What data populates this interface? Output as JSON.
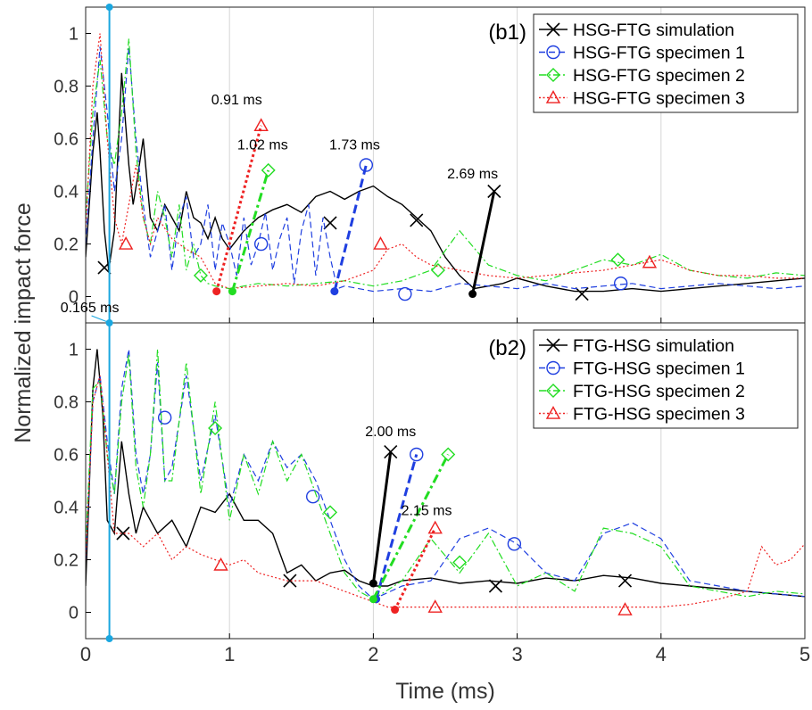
{
  "chart_data": [
    {
      "panel_label": "(b1)",
      "type": "line",
      "xlim": [
        0,
        5
      ],
      "ylim": [
        -0.1,
        1.1
      ],
      "grid": "vertical",
      "legend_placement": "top-right",
      "xticks": [
        "0",
        "1",
        "2",
        "3",
        "4",
        "5"
      ],
      "yticks": [
        "0",
        "0.2",
        "0.4",
        "0.6",
        "0.8",
        "1"
      ],
      "series": [
        {
          "name": "HSG-FTG simulation",
          "color": "#000000",
          "dash": "solid",
          "marker": "x",
          "x": [
            0,
            0.05,
            0.08,
            0.1,
            0.13,
            0.16,
            0.2,
            0.25,
            0.3,
            0.33,
            0.36,
            0.4,
            0.45,
            0.5,
            0.55,
            0.6,
            0.65,
            0.7,
            0.75,
            0.8,
            0.85,
            0.9,
            0.95,
            1.0,
            1.1,
            1.2,
            1.3,
            1.4,
            1.5,
            1.6,
            1.7,
            1.8,
            1.9,
            2.0,
            2.1,
            2.2,
            2.3,
            2.4,
            2.5,
            2.6,
            2.7,
            2.8,
            2.9,
            3.0,
            3.2,
            3.4,
            3.6,
            3.8,
            4.0,
            4.2,
            4.4,
            4.6,
            4.8,
            5.0
          ],
          "y": [
            0.15,
            0.55,
            0.7,
            0.55,
            0.25,
            0.1,
            0.25,
            0.85,
            0.5,
            0.35,
            0.45,
            0.6,
            0.3,
            0.25,
            0.35,
            0.3,
            0.25,
            0.4,
            0.3,
            0.28,
            0.22,
            0.3,
            0.22,
            0.18,
            0.25,
            0.3,
            0.33,
            0.35,
            0.32,
            0.38,
            0.4,
            0.37,
            0.4,
            0.42,
            0.38,
            0.35,
            0.3,
            0.25,
            0.15,
            0.08,
            0.03,
            0.04,
            0.05,
            0.07,
            0.04,
            0.02,
            0.02,
            0.03,
            0.02,
            0.03,
            0.04,
            0.05,
            0.06,
            0.07
          ],
          "markers": [
            [
              0.13,
              0.11
            ],
            [
              1.7,
              0.28
            ],
            [
              2.3,
              0.29
            ],
            [
              3.45,
              0.01
            ]
          ]
        },
        {
          "name": "HSG-FTG specimen 1",
          "color": "#1f3fe0",
          "dash": "dashed",
          "marker": "o",
          "x": [
            0,
            0.05,
            0.1,
            0.15,
            0.2,
            0.25,
            0.3,
            0.35,
            0.4,
            0.45,
            0.5,
            0.55,
            0.6,
            0.65,
            0.7,
            0.75,
            0.8,
            0.85,
            0.9,
            0.95,
            1.0,
            1.05,
            1.1,
            1.15,
            1.2,
            1.25,
            1.3,
            1.35,
            1.4,
            1.45,
            1.5,
            1.55,
            1.6,
            1.65,
            1.7,
            1.75,
            1.8,
            2.0,
            2.2,
            2.4,
            2.6,
            2.8,
            3.0,
            3.2,
            3.4,
            3.6,
            3.8,
            4.0,
            4.2,
            4.4,
            4.6,
            4.8,
            5.0
          ],
          "y": [
            0.2,
            0.6,
            0.95,
            0.7,
            0.4,
            0.6,
            0.95,
            0.6,
            0.35,
            0.15,
            0.25,
            0.35,
            0.1,
            0.3,
            0.38,
            0.15,
            0.2,
            0.35,
            0.1,
            0.28,
            0.2,
            0.08,
            0.3,
            0.12,
            0.2,
            0.32,
            0.1,
            0.22,
            0.3,
            0.05,
            0.25,
            0.35,
            0.08,
            0.3,
            0.15,
            0.03,
            0.04,
            0.02,
            0.03,
            0.02,
            0.05,
            0.04,
            0.03,
            0.05,
            0.03,
            0.04,
            0.05,
            0.03,
            0.04,
            0.05,
            0.04,
            0.03,
            0.04
          ],
          "markers": [
            [
              1.22,
              0.2
            ],
            [
              2.22,
              0.01
            ],
            [
              3.72,
              0.05
            ]
          ]
        },
        {
          "name": "HSG-FTG specimen 2",
          "color": "#22dd22",
          "dash": "dashdot",
          "marker": "d",
          "x": [
            0,
            0.05,
            0.1,
            0.15,
            0.2,
            0.25,
            0.3,
            0.35,
            0.4,
            0.45,
            0.5,
            0.55,
            0.6,
            0.65,
            0.7,
            0.75,
            0.8,
            0.85,
            0.9,
            1.0,
            1.1,
            1.2,
            1.4,
            1.6,
            1.8,
            2.0,
            2.2,
            2.4,
            2.6,
            2.8,
            3.0,
            3.2,
            3.4,
            3.6,
            3.8,
            4.0,
            4.2,
            4.4,
            4.6,
            4.8,
            5.0
          ],
          "y": [
            0.3,
            0.7,
            0.9,
            0.6,
            0.5,
            0.7,
            0.98,
            0.55,
            0.3,
            0.2,
            0.4,
            0.3,
            0.15,
            0.35,
            0.1,
            0.2,
            0.08,
            0.05,
            0.04,
            0.03,
            0.04,
            0.05,
            0.04,
            0.05,
            0.06,
            0.04,
            0.06,
            0.1,
            0.25,
            0.12,
            0.08,
            0.06,
            0.1,
            0.14,
            0.12,
            0.16,
            0.1,
            0.08,
            0.07,
            0.09,
            0.08
          ],
          "markers": [
            [
              0.8,
              0.08
            ],
            [
              2.45,
              0.1
            ],
            [
              3.7,
              0.14
            ]
          ]
        },
        {
          "name": "HSG-FTG specimen 3",
          "color": "#ee2222",
          "dash": "dotted",
          "marker": "^",
          "x": [
            0,
            0.05,
            0.1,
            0.15,
            0.2,
            0.25,
            0.3,
            0.35,
            0.4,
            0.45,
            0.5,
            0.6,
            0.7,
            0.8,
            0.9,
            1.0,
            1.2,
            1.4,
            1.6,
            1.8,
            2.0,
            2.1,
            2.2,
            2.3,
            2.4,
            2.6,
            2.8,
            3.0,
            3.2,
            3.4,
            3.6,
            3.8,
            4.0,
            4.2,
            4.4,
            4.6,
            4.8,
            5.0
          ],
          "y": [
            0.25,
            0.8,
            1.0,
            0.6,
            0.3,
            0.2,
            0.35,
            0.5,
            0.3,
            0.2,
            0.3,
            0.22,
            0.18,
            0.15,
            0.05,
            0.03,
            0.04,
            0.05,
            0.04,
            0.06,
            0.1,
            0.18,
            0.2,
            0.15,
            0.12,
            0.1,
            0.08,
            0.07,
            0.08,
            0.09,
            0.1,
            0.12,
            0.14,
            0.1,
            0.08,
            0.08,
            0.07,
            0.07
          ],
          "markers": [
            [
              0.28,
              0.2
            ],
            [
              2.05,
              0.2
            ],
            [
              3.92,
              0.13
            ]
          ]
        }
      ],
      "annotations": [
        {
          "text": "0.91 ms",
          "color": "#ee2222",
          "dash": "dotted",
          "marker": "^",
          "from": [
            0.91,
            0.02
          ],
          "to": [
            1.22,
            0.65
          ],
          "label_at": [
            1.05,
            0.73
          ]
        },
        {
          "text": "1.02 ms",
          "color": "#22dd22",
          "dash": "dashdot",
          "marker": "d",
          "from": [
            1.02,
            0.02
          ],
          "to": [
            1.27,
            0.48
          ],
          "label_at": [
            1.23,
            0.56
          ]
        },
        {
          "text": "1.73 ms",
          "color": "#1f3fe0",
          "dash": "dashed",
          "marker": "o",
          "from": [
            1.73,
            0.02
          ],
          "to": [
            1.95,
            0.5
          ],
          "label_at": [
            1.87,
            0.56
          ]
        },
        {
          "text": "2.69 ms",
          "color": "#000000",
          "dash": "solid",
          "marker": "x",
          "from": [
            2.69,
            0.01
          ],
          "to": [
            2.84,
            0.4
          ],
          "label_at": [
            2.69,
            0.45
          ]
        }
      ]
    },
    {
      "panel_label": "(b2)",
      "type": "line",
      "xlim": [
        0,
        5
      ],
      "ylim": [
        -0.1,
        1.1
      ],
      "grid": "vertical",
      "legend_placement": "top-right",
      "xticks": [
        "0",
        "1",
        "2",
        "3",
        "4",
        "5"
      ],
      "yticks": [
        "0",
        "0.2",
        "0.4",
        "0.6",
        "0.8",
        "1"
      ],
      "xlabel": "Time (ms)",
      "series": [
        {
          "name": "FTG-HSG simulation",
          "color": "#000000",
          "dash": "solid",
          "marker": "x",
          "x": [
            0,
            0.05,
            0.08,
            0.12,
            0.15,
            0.2,
            0.25,
            0.3,
            0.35,
            0.4,
            0.45,
            0.5,
            0.6,
            0.7,
            0.8,
            0.9,
            1.0,
            1.1,
            1.2,
            1.3,
            1.4,
            1.5,
            1.6,
            1.7,
            1.8,
            1.9,
            2.0,
            2.1,
            2.2,
            2.4,
            2.6,
            2.8,
            3.0,
            3.2,
            3.4,
            3.6,
            3.8,
            4.0,
            4.2,
            4.4,
            4.6,
            4.8,
            5.0
          ],
          "y": [
            0.1,
            0.85,
            1.0,
            0.75,
            0.35,
            0.3,
            0.65,
            0.45,
            0.3,
            0.4,
            0.35,
            0.3,
            0.35,
            0.25,
            0.4,
            0.38,
            0.45,
            0.35,
            0.35,
            0.3,
            0.15,
            0.18,
            0.12,
            0.15,
            0.16,
            0.12,
            0.1,
            0.1,
            0.12,
            0.13,
            0.11,
            0.12,
            0.11,
            0.13,
            0.12,
            0.14,
            0.13,
            0.11,
            0.1,
            0.09,
            0.08,
            0.07,
            0.06
          ],
          "markers": [
            [
              0.26,
              0.3
            ],
            [
              1.42,
              0.12
            ],
            [
              2.85,
              0.1
            ],
            [
              3.75,
              0.12
            ]
          ]
        },
        {
          "name": "FTG-HSG specimen 1",
          "color": "#1f3fe0",
          "dash": "dashed",
          "marker": "o",
          "x": [
            0,
            0.05,
            0.1,
            0.15,
            0.2,
            0.25,
            0.3,
            0.35,
            0.4,
            0.45,
            0.5,
            0.55,
            0.6,
            0.7,
            0.8,
            0.9,
            1.0,
            1.1,
            1.2,
            1.3,
            1.4,
            1.5,
            1.6,
            1.7,
            1.8,
            1.9,
            2.0,
            2.2,
            2.4,
            2.6,
            2.8,
            3.0,
            3.2,
            3.4,
            3.6,
            3.8,
            4.0,
            4.2,
            4.4,
            4.6,
            4.8,
            5.0
          ],
          "y": [
            0.2,
            0.8,
            0.9,
            0.65,
            0.45,
            0.85,
            1.0,
            0.6,
            0.45,
            0.6,
            0.95,
            0.5,
            0.55,
            0.9,
            0.5,
            0.75,
            0.4,
            0.6,
            0.5,
            0.65,
            0.55,
            0.6,
            0.5,
            0.35,
            0.2,
            0.1,
            0.05,
            0.1,
            0.12,
            0.28,
            0.32,
            0.26,
            0.15,
            0.12,
            0.3,
            0.34,
            0.28,
            0.12,
            0.1,
            0.08,
            0.07,
            0.06
          ],
          "markers": [
            [
              0.55,
              0.74
            ],
            [
              1.58,
              0.44
            ],
            [
              2.98,
              0.26
            ]
          ]
        },
        {
          "name": "FTG-HSG specimen 2",
          "color": "#22dd22",
          "dash": "dashdot",
          "marker": "d",
          "x": [
            0,
            0.05,
            0.1,
            0.15,
            0.2,
            0.25,
            0.3,
            0.35,
            0.4,
            0.45,
            0.5,
            0.55,
            0.6,
            0.7,
            0.8,
            0.9,
            1.0,
            1.1,
            1.2,
            1.3,
            1.4,
            1.5,
            1.6,
            1.7,
            1.8,
            1.9,
            2.0,
            2.2,
            2.4,
            2.6,
            2.8,
            3.0,
            3.2,
            3.4,
            3.6,
            3.8,
            4.0,
            4.2,
            4.4,
            4.6,
            4.8,
            5.0
          ],
          "y": [
            0.25,
            0.85,
            0.88,
            0.6,
            0.45,
            0.8,
            0.98,
            0.55,
            0.4,
            0.6,
            1.0,
            0.5,
            0.5,
            0.95,
            0.45,
            0.8,
            0.35,
            0.6,
            0.45,
            0.65,
            0.5,
            0.6,
            0.45,
            0.3,
            0.15,
            0.08,
            0.05,
            0.12,
            0.28,
            0.15,
            0.3,
            0.1,
            0.15,
            0.08,
            0.32,
            0.3,
            0.25,
            0.1,
            0.08,
            0.06,
            0.08,
            0.07
          ],
          "markers": [
            [
              0.9,
              0.7
            ],
            [
              1.7,
              0.38
            ],
            [
              2.6,
              0.19
            ]
          ]
        },
        {
          "name": "FTG-HSG specimen 3",
          "color": "#ee2222",
          "dash": "dotted",
          "marker": "^",
          "x": [
            0,
            0.05,
            0.1,
            0.15,
            0.2,
            0.3,
            0.4,
            0.5,
            0.6,
            0.7,
            0.8,
            0.9,
            1.0,
            1.1,
            1.2,
            1.4,
            1.6,
            1.8,
            2.0,
            2.1,
            2.2,
            2.4,
            2.6,
            2.8,
            3.0,
            3.2,
            3.4,
            3.6,
            3.8,
            4.0,
            4.2,
            4.4,
            4.6,
            4.7,
            4.8,
            4.9,
            5.0
          ],
          "y": [
            0.2,
            0.8,
            0.9,
            0.6,
            0.3,
            0.3,
            0.25,
            0.3,
            0.2,
            0.25,
            0.22,
            0.2,
            0.18,
            0.2,
            0.15,
            0.12,
            0.12,
            0.08,
            0.04,
            0.02,
            0.02,
            0.02,
            0.02,
            0.02,
            0.02,
            0.02,
            0.02,
            0.02,
            0.02,
            0.02,
            0.03,
            0.05,
            0.08,
            0.25,
            0.18,
            0.2,
            0.26
          ],
          "markers": [
            [
              0.94,
              0.18
            ],
            [
              2.43,
              0.02
            ],
            [
              3.75,
              0.01
            ]
          ]
        }
      ],
      "annotations": [
        {
          "text": "2.00 ms",
          "color": "#000000",
          "dash": "solid",
          "marker": "x",
          "from": [
            2.0,
            0.11
          ],
          "to": [
            2.12,
            0.61
          ],
          "label_at": [
            2.12,
            0.67
          ]
        },
        {
          "text": "",
          "color": "#1f3fe0",
          "dash": "dashed",
          "marker": "o",
          "from": [
            2.02,
            0.05
          ],
          "to": [
            2.3,
            0.6
          ],
          "label_at": null
        },
        {
          "text": "",
          "color": "#22dd22",
          "dash": "dashdot",
          "marker": "d",
          "from": [
            2.0,
            0.05
          ],
          "to": [
            2.52,
            0.6
          ],
          "label_at": null
        },
        {
          "text": "2.15 ms",
          "color": "#ee2222",
          "dash": "dotted",
          "marker": "^",
          "from": [
            2.15,
            0.01
          ],
          "to": [
            2.43,
            0.32
          ],
          "label_at": [
            2.37,
            0.37
          ]
        }
      ]
    }
  ],
  "shared": {
    "ylabel": "Normalized impact force",
    "xlabel": "Time (ms)",
    "cursor_x": 0.165,
    "cursor_label": "0.165 ms",
    "cursor_color": "#1aa7e0",
    "grid_color": "#d6d6d6"
  }
}
